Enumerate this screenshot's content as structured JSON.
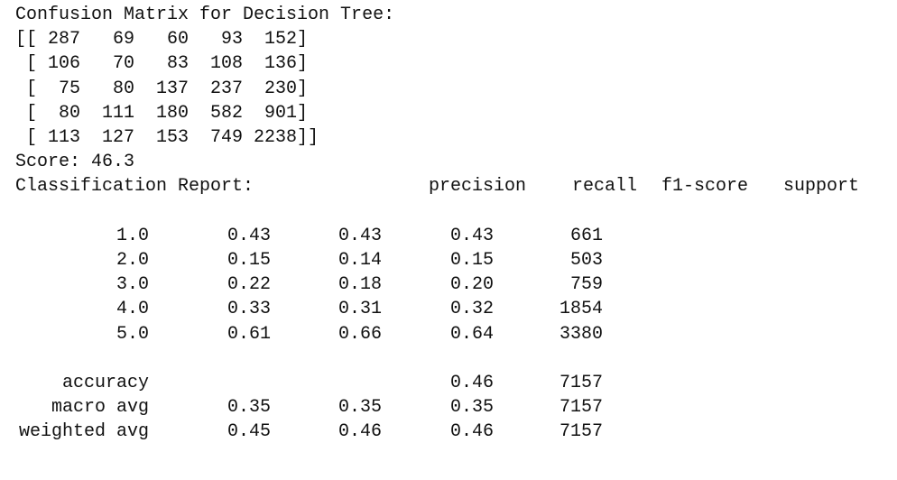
{
  "title": "Confusion Matrix for Decision Tree:",
  "matrix_lines": [
    "[[ 287   69   60   93  152]",
    " [ 106   70   83  108  136]",
    " [  75   80  137  237  230]",
    " [  80  111  180  582  901]",
    " [ 113  127  153  749 2238]]"
  ],
  "score": "Score: 46.3",
  "report": {
    "title": "Classification Report:",
    "headers": [
      "precision",
      "recall",
      "f1-score",
      "support"
    ],
    "rows": [
      {
        "label": "1.0",
        "precision": "0.43",
        "recall": "0.43",
        "f1": "0.43",
        "support": "661"
      },
      {
        "label": "2.0",
        "precision": "0.15",
        "recall": "0.14",
        "f1": "0.15",
        "support": "503"
      },
      {
        "label": "3.0",
        "precision": "0.22",
        "recall": "0.18",
        "f1": "0.20",
        "support": "759"
      },
      {
        "label": "4.0",
        "precision": "0.33",
        "recall": "0.31",
        "f1": "0.32",
        "support": "1854"
      },
      {
        "label": "5.0",
        "precision": "0.61",
        "recall": "0.66",
        "f1": "0.64",
        "support": "3380"
      }
    ],
    "summary": [
      {
        "label": "accuracy",
        "f1": "0.46",
        "support": "7157"
      },
      {
        "label": "macro avg",
        "precision": "0.35",
        "recall": "0.35",
        "f1": "0.35",
        "support": "7157"
      },
      {
        "label": "weighted avg",
        "precision": "0.45",
        "recall": "0.46",
        "f1": "0.46",
        "support": "7157"
      }
    ]
  }
}
